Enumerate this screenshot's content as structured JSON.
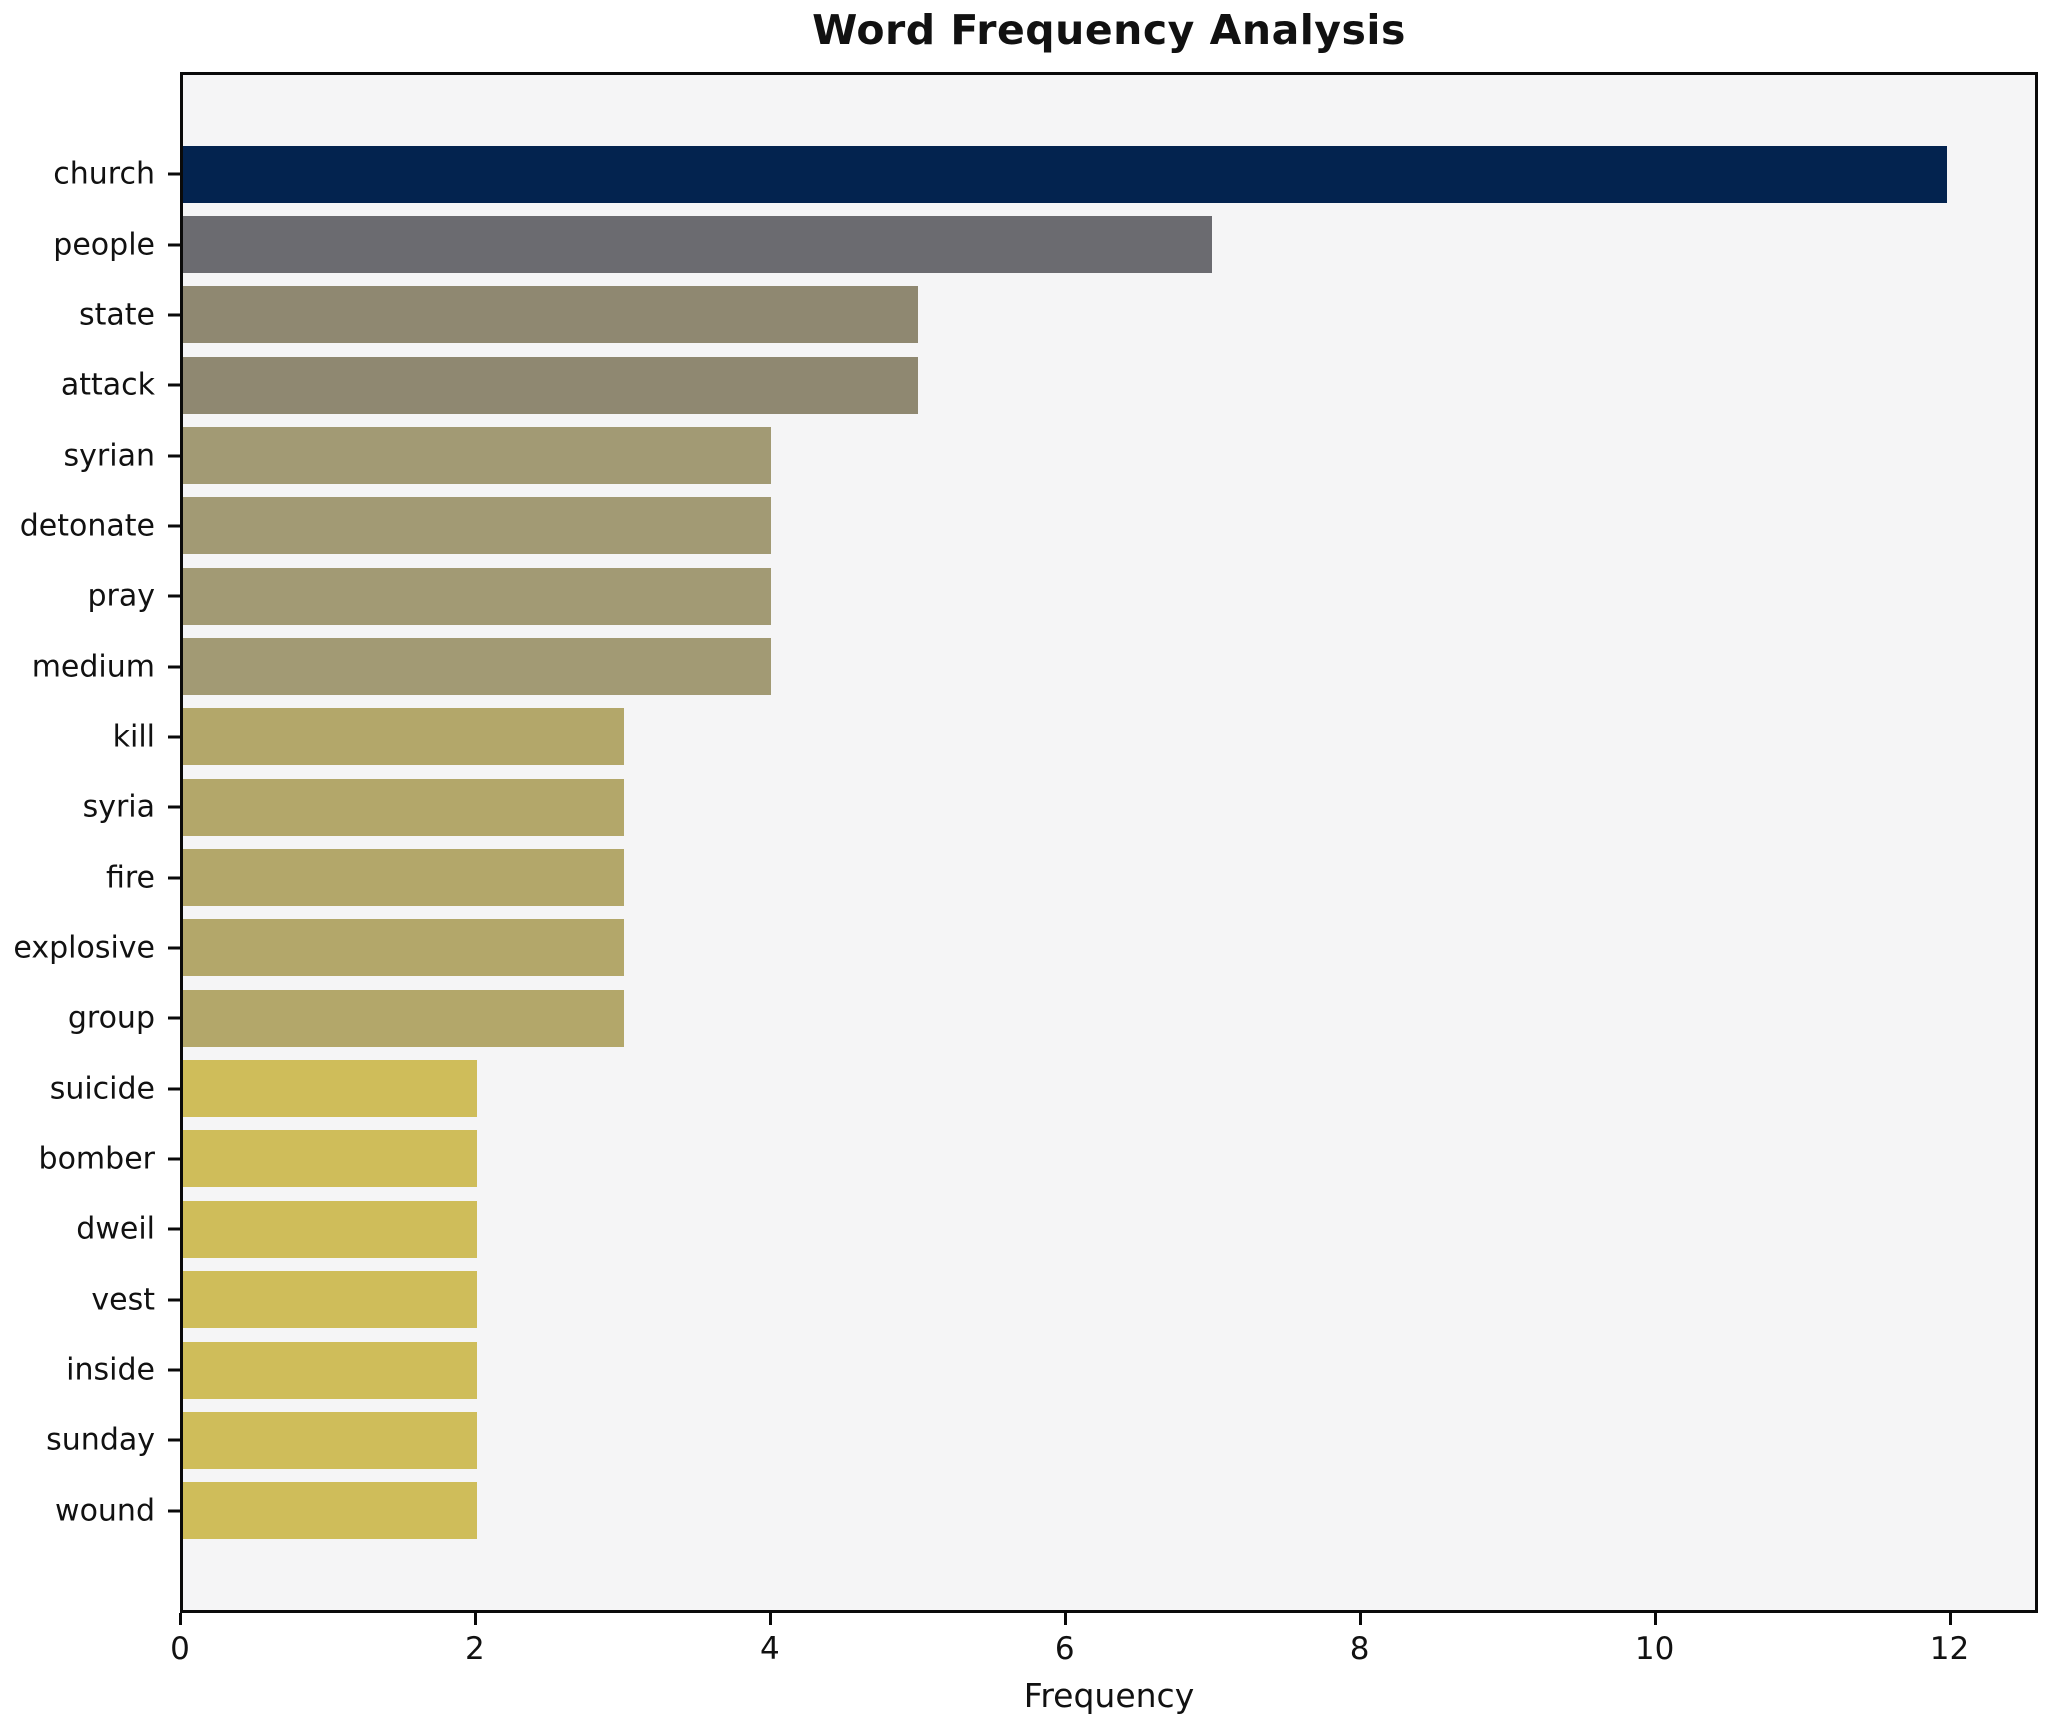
{
  "header": {
    "title": "Word Frequency Analysis"
  },
  "chart_data": {
    "type": "bar",
    "orientation": "horizontal",
    "title": "Word Frequency Analysis",
    "xlabel": "Frequency",
    "ylabel": "",
    "categories": [
      "church",
      "people",
      "state",
      "attack",
      "syrian",
      "detonate",
      "pray",
      "medium",
      "kill",
      "syria",
      "fire",
      "explosive",
      "group",
      "suicide",
      "bomber",
      "dweil",
      "vest",
      "inside",
      "sunday",
      "wound"
    ],
    "values": [
      12,
      7,
      5,
      5,
      4,
      4,
      4,
      4,
      3,
      3,
      3,
      3,
      3,
      2,
      2,
      2,
      2,
      2,
      2,
      2
    ],
    "bar_colors": [
      "#03234f",
      "#6b6b70",
      "#8f8871",
      "#8f8871",
      "#a29a74",
      "#a29a74",
      "#a29a74",
      "#a29a74",
      "#b3a76a",
      "#b3a76a",
      "#b3a76a",
      "#b3a76a",
      "#b3a76a",
      "#cfbd5a",
      "#cfbd5a",
      "#cfbd5a",
      "#cfbd5a",
      "#cfbd5a",
      "#cfbd5a",
      "#cfbd5a"
    ],
    "xlim": [
      0,
      12.6
    ],
    "xticks": [
      "0",
      "2",
      "4",
      "6",
      "8",
      "10",
      "12"
    ],
    "grid": false,
    "legend": null,
    "plot_background": "#f5f5f6",
    "figure_background": "#ffffff",
    "bar_height_fraction": 0.8
  }
}
